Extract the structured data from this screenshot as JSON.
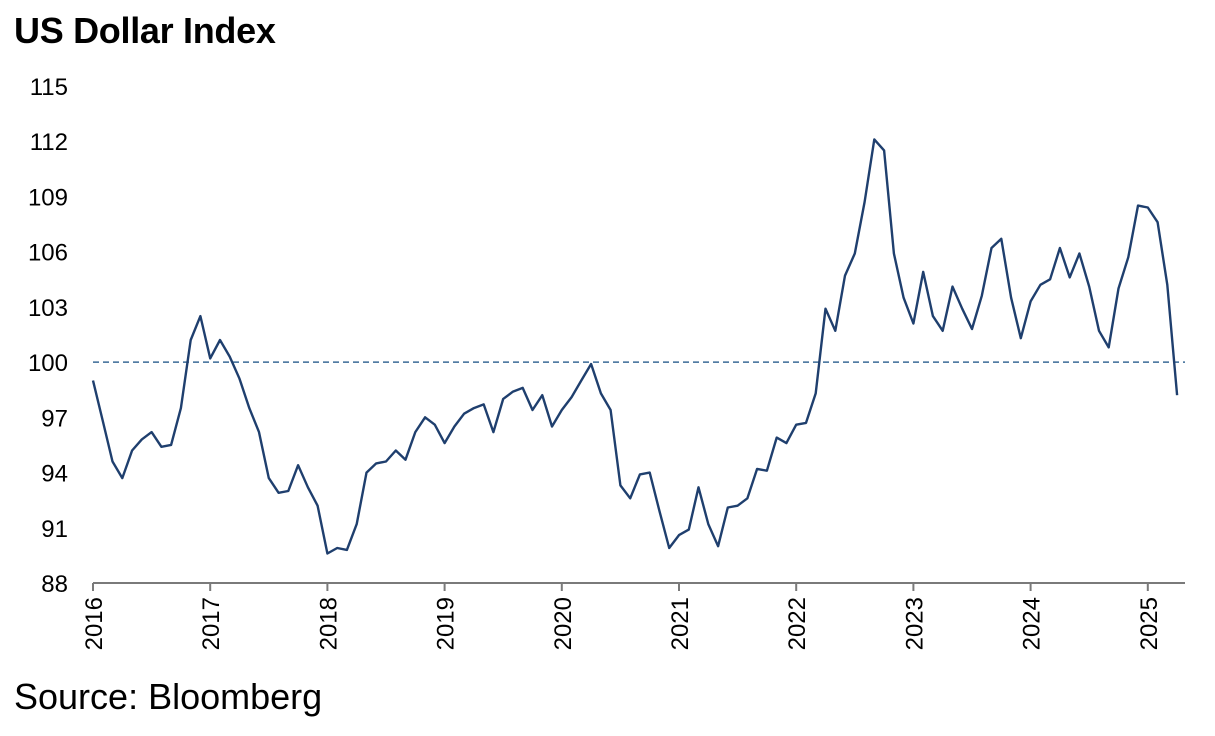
{
  "chart_data": {
    "type": "line",
    "title": "US Dollar Index",
    "source": "Source: Bloomberg",
    "xlabel": "",
    "ylabel": "",
    "ylim": [
      88,
      115
    ],
    "xlim": [
      "2016-01",
      "2025-04"
    ],
    "y_ticks": [
      115,
      112,
      109,
      106,
      103,
      100,
      97,
      94,
      91,
      88
    ],
    "x_ticks": [
      "2016",
      "2017",
      "2018",
      "2019",
      "2020",
      "2021",
      "2022",
      "2023",
      "2024",
      "2025"
    ],
    "reference_line": 100,
    "grid": false,
    "series": [
      {
        "color": "#1f3f6e",
        "x": [
          "2016-01",
          "2016-02",
          "2016-03",
          "2016-04",
          "2016-05",
          "2016-06",
          "2016-07",
          "2016-08",
          "2016-09",
          "2016-10",
          "2016-11",
          "2016-12",
          "2017-01",
          "2017-02",
          "2017-03",
          "2017-04",
          "2017-05",
          "2017-06",
          "2017-07",
          "2017-08",
          "2017-09",
          "2017-10",
          "2017-11",
          "2017-12",
          "2018-01",
          "2018-02",
          "2018-03",
          "2018-04",
          "2018-05",
          "2018-06",
          "2018-07",
          "2018-08",
          "2018-09",
          "2018-10",
          "2018-11",
          "2018-12",
          "2019-01",
          "2019-02",
          "2019-03",
          "2019-04",
          "2019-05",
          "2019-06",
          "2019-07",
          "2019-08",
          "2019-09",
          "2019-10",
          "2019-11",
          "2019-12",
          "2020-01",
          "2020-02",
          "2020-03",
          "2020-04",
          "2020-05",
          "2020-06",
          "2020-07",
          "2020-08",
          "2020-09",
          "2020-10",
          "2020-11",
          "2020-12",
          "2021-01",
          "2021-02",
          "2021-03",
          "2021-04",
          "2021-05",
          "2021-06",
          "2021-07",
          "2021-08",
          "2021-09",
          "2021-10",
          "2021-11",
          "2021-12",
          "2022-01",
          "2022-02",
          "2022-03",
          "2022-04",
          "2022-05",
          "2022-06",
          "2022-07",
          "2022-08",
          "2022-09",
          "2022-10",
          "2022-11",
          "2022-12",
          "2023-01",
          "2023-02",
          "2023-03",
          "2023-04",
          "2023-05",
          "2023-06",
          "2023-07",
          "2023-08",
          "2023-09",
          "2023-10",
          "2023-11",
          "2023-12",
          "2024-01",
          "2024-02",
          "2024-03",
          "2024-04",
          "2024-05",
          "2024-06",
          "2024-07",
          "2024-08",
          "2024-09",
          "2024-10",
          "2024-11",
          "2024-12",
          "2025-01",
          "2025-02",
          "2025-03",
          "2025-04"
        ],
        "values": [
          99.0,
          96.8,
          94.6,
          93.7,
          95.2,
          95.8,
          96.2,
          95.4,
          95.5,
          97.5,
          101.2,
          102.5,
          100.2,
          101.2,
          100.3,
          99.1,
          97.5,
          96.2,
          93.7,
          92.9,
          93.0,
          94.4,
          93.2,
          92.2,
          89.6,
          89.9,
          89.8,
          91.2,
          94.0,
          94.5,
          94.6,
          95.2,
          94.7,
          96.2,
          97.0,
          96.6,
          95.6,
          96.5,
          97.2,
          97.5,
          97.7,
          96.2,
          98.0,
          98.4,
          98.6,
          97.4,
          98.2,
          96.5,
          97.4,
          98.1,
          99.0,
          99.9,
          98.3,
          97.4,
          93.3,
          92.6,
          93.9,
          94.0,
          91.9,
          89.9,
          90.6,
          90.9,
          93.2,
          91.2,
          90.0,
          92.1,
          92.2,
          92.6,
          94.2,
          94.1,
          95.9,
          95.6,
          96.6,
          96.7,
          98.3,
          102.9,
          101.7,
          104.7,
          105.9,
          108.7,
          112.1,
          111.5,
          105.9,
          103.5,
          102.1,
          104.9,
          102.5,
          101.7,
          104.1,
          102.9,
          101.8,
          103.6,
          106.2,
          106.7,
          103.5,
          101.3,
          103.3,
          104.2,
          104.5,
          106.2,
          104.6,
          105.9,
          104.1,
          101.7,
          100.8,
          104.0,
          105.7,
          108.5,
          108.4,
          107.6,
          104.2,
          98.2
        ]
      }
    ]
  }
}
